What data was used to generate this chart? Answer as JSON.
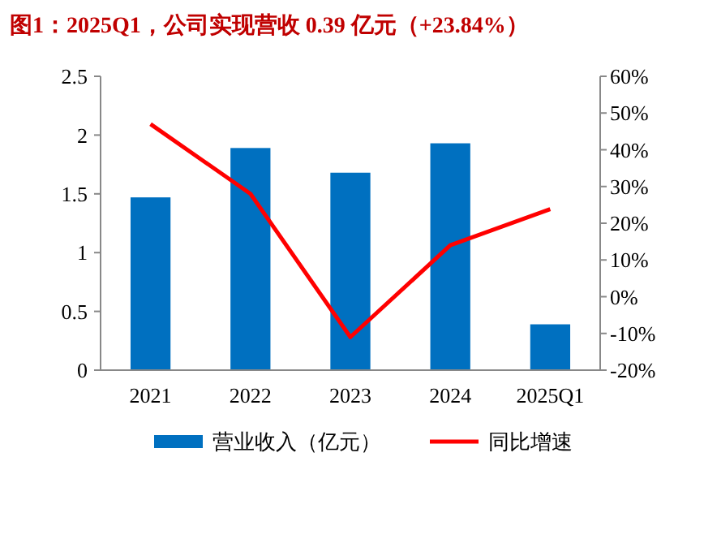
{
  "chart_data": {
    "type": "bar",
    "title": "图1：2025Q1，公司实现营收 0.39 亿元（+23.84%）",
    "categories": [
      "2021",
      "2022",
      "2023",
      "2024",
      "2025Q1"
    ],
    "series": [
      {
        "name": "营业收入（亿元）",
        "color": "#0070c0",
        "values": [
          1.47,
          1.89,
          1.68,
          1.93,
          0.39
        ]
      },
      {
        "name": "同比增速",
        "type": "line",
        "axis": "y2",
        "color": "#ff0000",
        "marker": "none",
        "values": [
          47,
          28,
          -11,
          14,
          23.84
        ]
      }
    ],
    "ylim": [
      0,
      2.5
    ],
    "yticks": [
      0,
      0.5,
      1,
      1.5,
      2,
      2.5
    ],
    "y2lim": [
      -20,
      60
    ],
    "y2ticks": [
      {
        "value": -20,
        "label": "-20%"
      },
      {
        "value": -10,
        "label": "-10%"
      },
      {
        "value": 0,
        "label": "0%"
      },
      {
        "value": 10,
        "label": "10%"
      },
      {
        "value": 20,
        "label": "20%"
      },
      {
        "value": 30,
        "label": "30%"
      },
      {
        "value": 40,
        "label": "40%"
      },
      {
        "value": 50,
        "label": "50%"
      },
      {
        "value": 60,
        "label": "60%"
      }
    ],
    "grid": false,
    "legend": "bottom"
  }
}
